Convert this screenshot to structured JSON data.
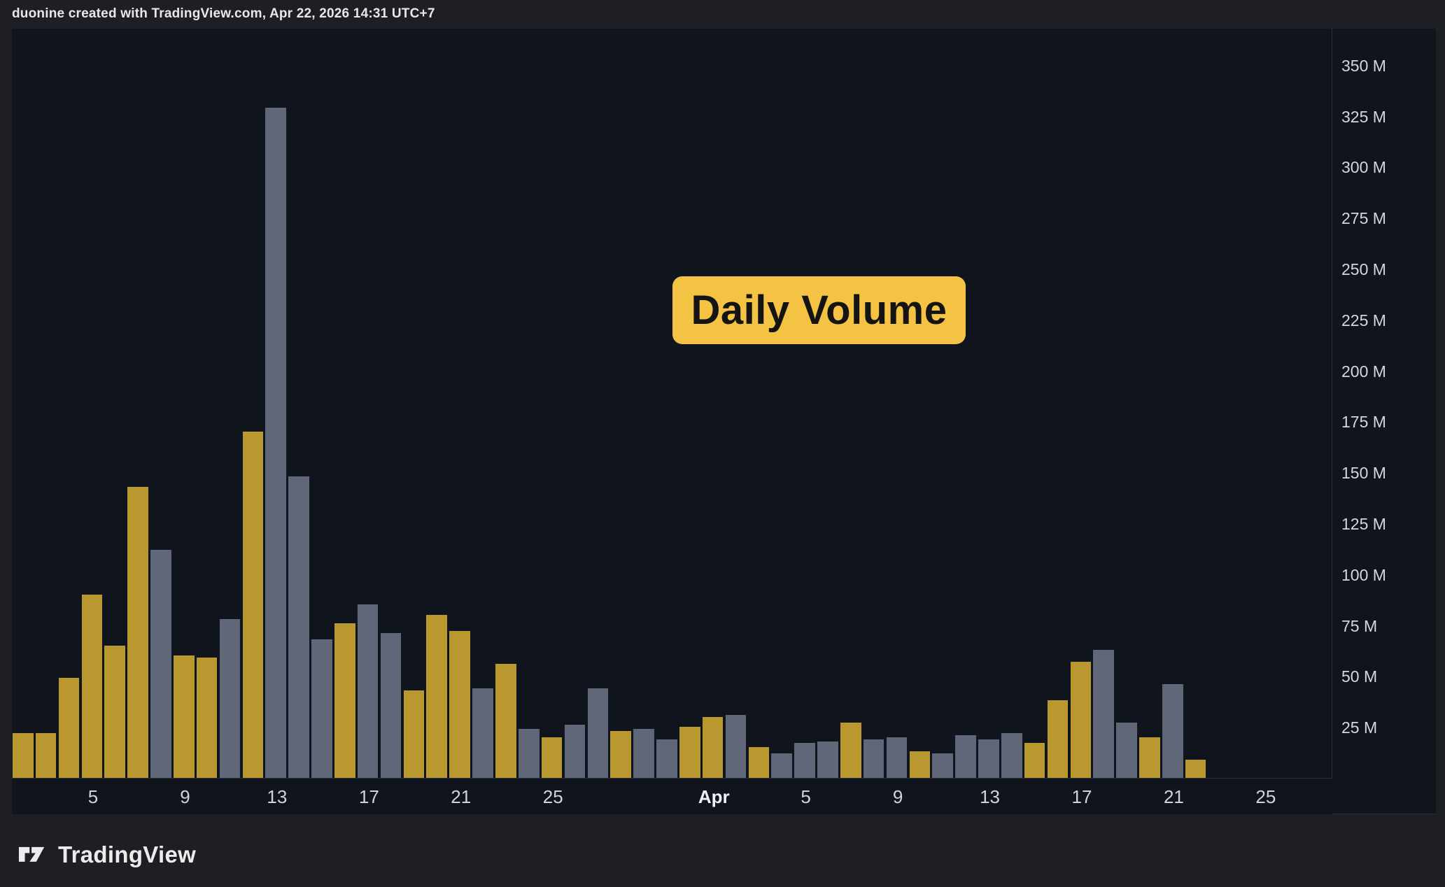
{
  "header": {
    "attribution": "duonine created with TradingView.com, Apr 22, 2026 14:31 UTC+7"
  },
  "badge": {
    "label": "Daily Volume",
    "bg": "#f5c344",
    "text_color": "#141414"
  },
  "brand": {
    "name": "TradingView"
  },
  "palette": {
    "gold": "#b8982f",
    "gray": "#5f6778",
    "chart_bg": "#10141d",
    "outer_bg": "#1e1f24",
    "axis_text": "#d4d7de",
    "separator": "#2b2f3a"
  },
  "chart_data": {
    "type": "bar",
    "title": "Daily Volume",
    "xlabel": "",
    "ylabel": "Volume",
    "unit": "M",
    "ylim": [
      0,
      362
    ],
    "grid": false,
    "legend": "none",
    "y_ticks": [
      {
        "label": "350 M",
        "value": 350
      },
      {
        "label": "325 M",
        "value": 325
      },
      {
        "label": "300 M",
        "value": 300
      },
      {
        "label": "275 M",
        "value": 275
      },
      {
        "label": "250 M",
        "value": 250
      },
      {
        "label": "225 M",
        "value": 225
      },
      {
        "label": "200 M",
        "value": 200
      },
      {
        "label": "175 M",
        "value": 175
      },
      {
        "label": "150 M",
        "value": 150
      },
      {
        "label": "125 M",
        "value": 125
      },
      {
        "label": "100 M",
        "value": 100
      },
      {
        "label": "75 M",
        "value": 75
      },
      {
        "label": "50 M",
        "value": 50
      },
      {
        "label": "25 M",
        "value": 25
      }
    ],
    "x_ticks": [
      {
        "slot": 4,
        "label": "5",
        "month": false
      },
      {
        "slot": 8,
        "label": "9",
        "month": false
      },
      {
        "slot": 12,
        "label": "13",
        "month": false
      },
      {
        "slot": 16,
        "label": "17",
        "month": false
      },
      {
        "slot": 20,
        "label": "21",
        "month": false
      },
      {
        "slot": 24,
        "label": "25",
        "month": false
      },
      {
        "slot": 31,
        "label": "Apr",
        "month": true
      },
      {
        "slot": 35,
        "label": "5",
        "month": false
      },
      {
        "slot": 39,
        "label": "9",
        "month": false
      },
      {
        "slot": 43,
        "label": "13",
        "month": false
      },
      {
        "slot": 47,
        "label": "17",
        "month": false
      },
      {
        "slot": 51,
        "label": "21",
        "month": false
      },
      {
        "slot": 55,
        "label": "25",
        "month": false
      }
    ],
    "x_start_day": "Mar 2",
    "x_end_day": "Apr 22",
    "values": [
      22,
      22,
      49,
      90,
      65,
      143,
      112,
      60,
      59,
      78,
      170,
      329,
      148,
      68,
      76,
      85,
      71,
      43,
      80,
      72,
      44,
      56,
      24,
      20,
      26,
      44,
      23,
      24,
      19,
      25,
      30,
      31,
      15,
      12,
      17,
      18,
      27,
      19,
      20,
      13,
      12,
      21,
      19,
      22,
      17,
      38,
      57,
      63,
      27,
      20,
      46,
      9
    ],
    "colors": [
      "gold",
      "gold",
      "gold",
      "gold",
      "gold",
      "gold",
      "gray",
      "gold",
      "gold",
      "gray",
      "gold",
      "gray",
      "gray",
      "gray",
      "gold",
      "gray",
      "gray",
      "gold",
      "gold",
      "gold",
      "gray",
      "gold",
      "gray",
      "gold",
      "gray",
      "gray",
      "gold",
      "gray",
      "gray",
      "gold",
      "gold",
      "gray",
      "gold",
      "gray",
      "gray",
      "gray",
      "gold",
      "gray",
      "gray",
      "gold",
      "gray",
      "gray",
      "gray",
      "gray",
      "gold",
      "gold",
      "gold",
      "gray",
      "gray",
      "gold",
      "gray",
      "gold"
    ]
  }
}
